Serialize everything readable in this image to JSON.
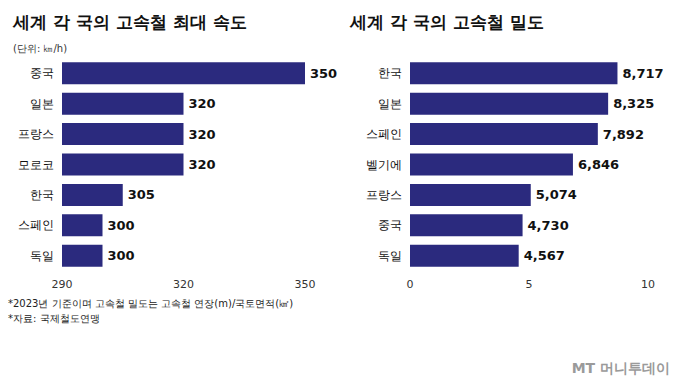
{
  "chart_data": [
    {
      "type": "bar",
      "orientation": "horizontal",
      "title": "세계 각 국의 고속철 최대 속도",
      "subtitle": "(단위: ㎞/h)",
      "categories": [
        "중국",
        "일본",
        "프랑스",
        "모로코",
        "한국",
        "스페인",
        "독일"
      ],
      "values": [
        350,
        320,
        320,
        320,
        305,
        300,
        300
      ],
      "color": "#2b2a7e",
      "xlim": [
        290,
        350
      ],
      "xticks": [
        290,
        320,
        350
      ],
      "grid": false,
      "data_labels": true
    },
    {
      "type": "bar",
      "orientation": "horizontal",
      "title": "세계 각 국의 고속철 밀도",
      "categories": [
        "한국",
        "일본",
        "스페인",
        "벨기에",
        "프랑스",
        "중국",
        "독일"
      ],
      "values": [
        8.717,
        8.325,
        7.892,
        6.846,
        5.074,
        4.73,
        4.567
      ],
      "value_labels": [
        "8,717",
        "8,325",
        "7,892",
        "6,846",
        "5,074",
        "4,730",
        "4,567"
      ],
      "color": "#2b2a7e",
      "xlim": [
        0,
        10
      ],
      "xticks": [
        0,
        5,
        10
      ],
      "grid": false,
      "data_labels": true
    }
  ],
  "notes": [
    "*2023년 기준이며 고속철 밀도는 고속철 연장(m)/국토면적(㎢)",
    "*자료: 국제철도연맹"
  ],
  "brand": "MT 머니투데이"
}
